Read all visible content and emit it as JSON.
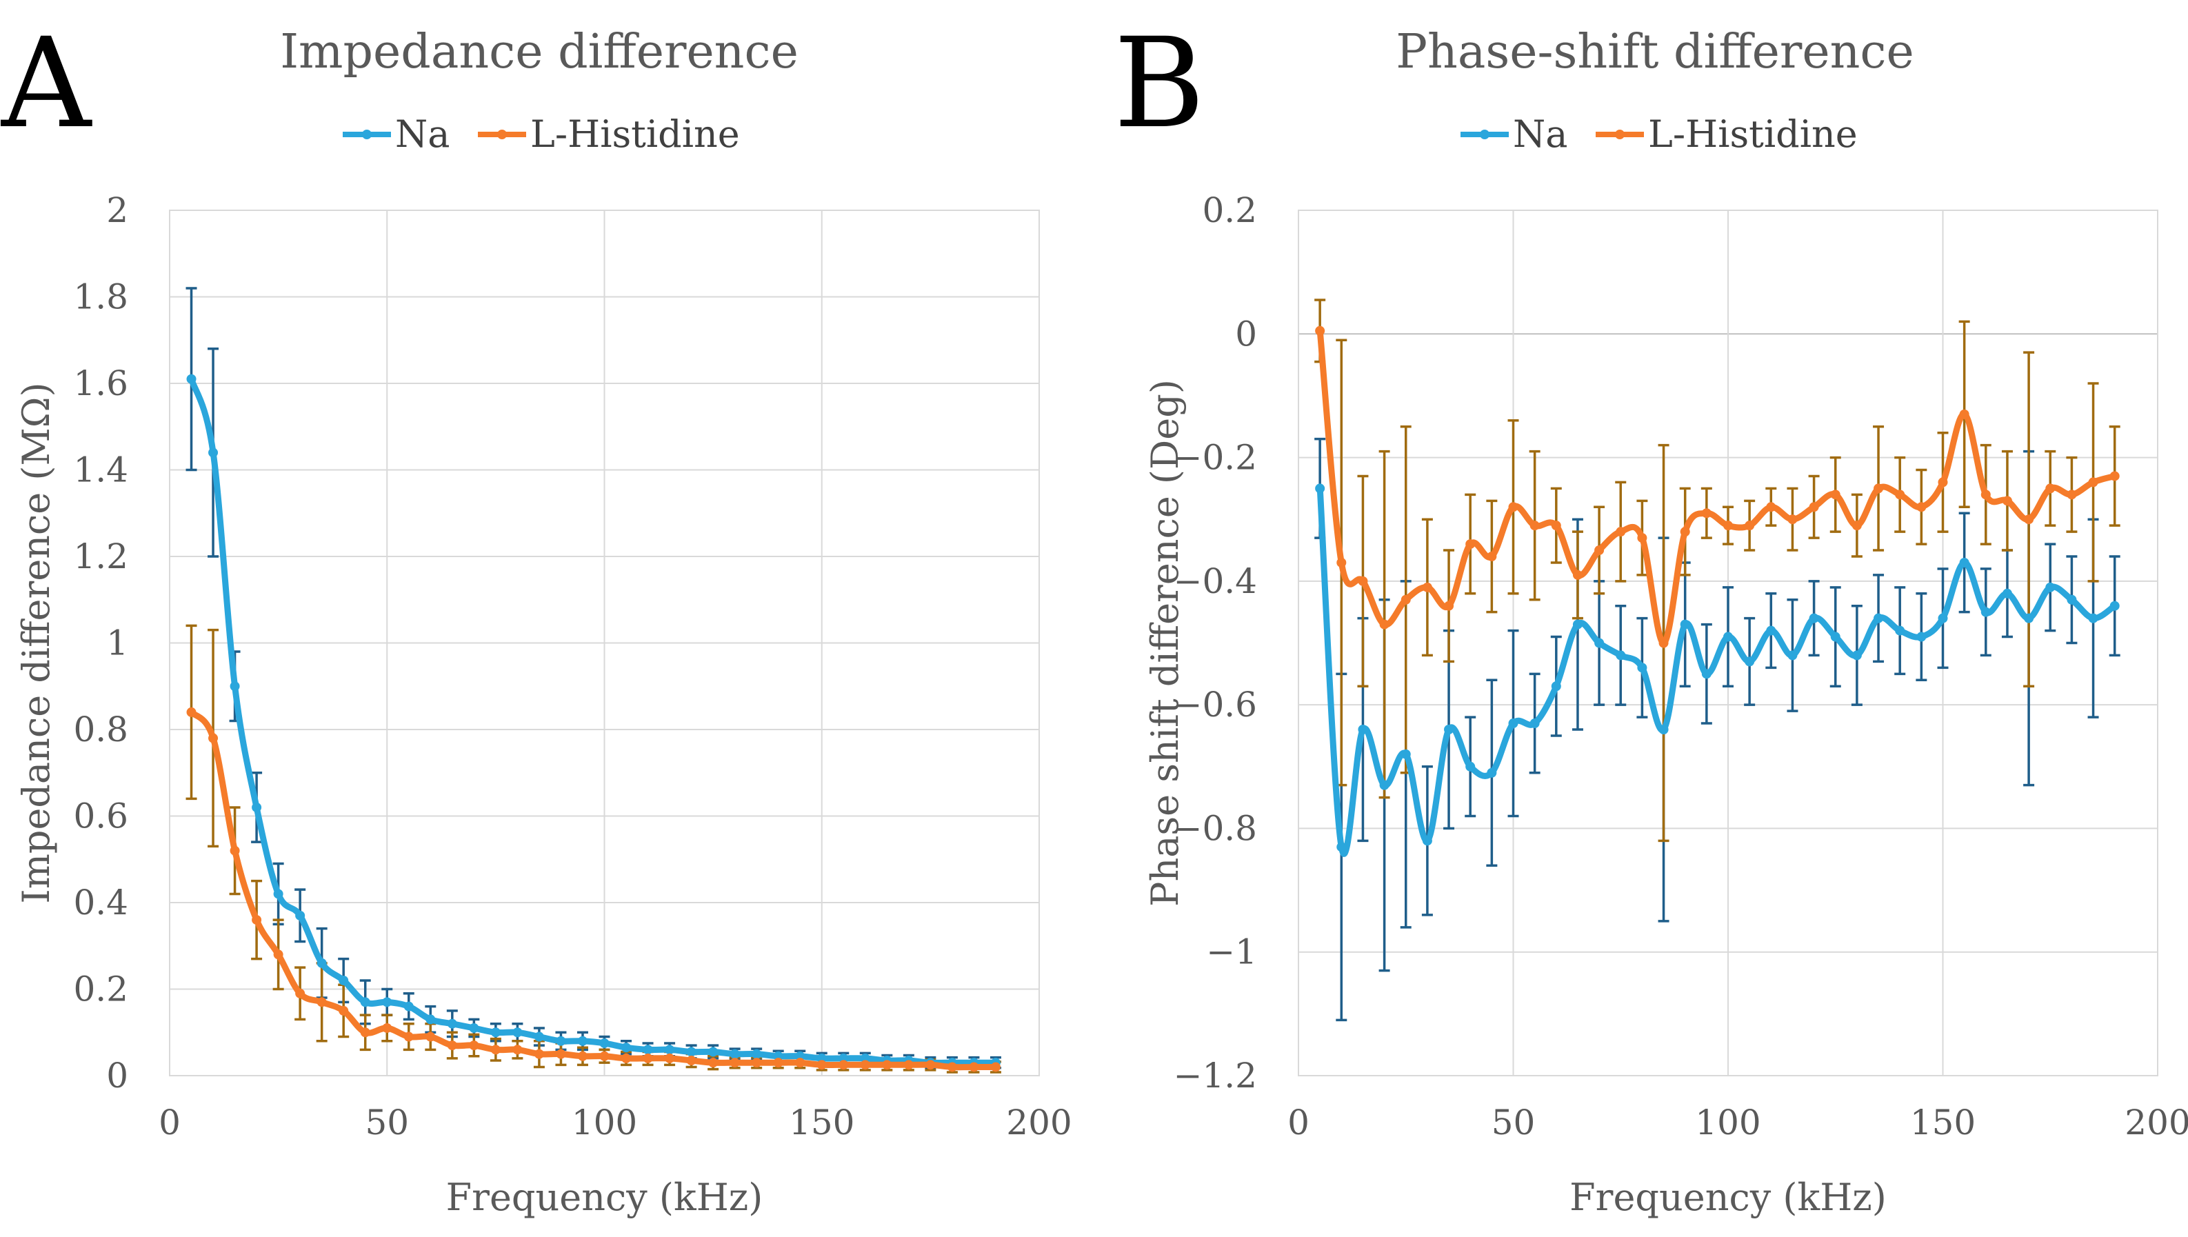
{
  "colors": {
    "na_line": "#2aa6dc",
    "lh_line": "#f57b2a",
    "na_err": "#1f5e8a",
    "lh_err": "#a06b10"
  },
  "chart_data": [
    {
      "panel": "A",
      "type": "line",
      "title": "Impedance difference",
      "xlabel": "Frequency (kHz)",
      "ylabel": "Impedance difference (MΩ)",
      "xlim": [
        0,
        200
      ],
      "ylim": [
        0,
        2
      ],
      "xticks": [
        0,
        50,
        100,
        150,
        200
      ],
      "yticks": [
        0,
        0.2,
        0.4,
        0.6,
        0.8,
        1,
        1.2,
        1.4,
        1.6,
        1.8,
        2
      ],
      "ytick_labels": [
        "0",
        "0.2",
        "0.4",
        "0.6",
        "0.8",
        "1",
        "1.2",
        "1.4",
        "1.6",
        "1.8",
        "2"
      ],
      "legend": [
        "Na",
        "L-Histidine"
      ],
      "x": [
        5,
        10,
        15,
        20,
        25,
        30,
        35,
        40,
        45,
        50,
        55,
        60,
        65,
        70,
        75,
        80,
        85,
        90,
        95,
        100,
        105,
        110,
        115,
        120,
        125,
        130,
        135,
        140,
        145,
        150,
        155,
        160,
        165,
        170,
        175,
        180,
        185,
        190
      ],
      "series": [
        {
          "name": "Na",
          "values": [
            1.61,
            1.44,
            0.9,
            0.62,
            0.42,
            0.37,
            0.26,
            0.22,
            0.17,
            0.17,
            0.16,
            0.13,
            0.12,
            0.11,
            0.1,
            0.1,
            0.09,
            0.08,
            0.08,
            0.075,
            0.065,
            0.06,
            0.06,
            0.055,
            0.055,
            0.05,
            0.05,
            0.045,
            0.045,
            0.04,
            0.04,
            0.04,
            0.035,
            0.035,
            0.03,
            0.03,
            0.03,
            0.03
          ],
          "errors": [
            0.21,
            0.24,
            0.08,
            0.08,
            0.07,
            0.06,
            0.08,
            0.05,
            0.05,
            0.03,
            0.03,
            0.03,
            0.03,
            0.02,
            0.02,
            0.02,
            0.02,
            0.02,
            0.02,
            0.015,
            0.015,
            0.015,
            0.015,
            0.015,
            0.015,
            0.012,
            0.012,
            0.012,
            0.012,
            0.012,
            0.012,
            0.012,
            0.012,
            0.012,
            0.012,
            0.012,
            0.012,
            0.012
          ]
        },
        {
          "name": "L-Histidine",
          "values": [
            0.84,
            0.78,
            0.52,
            0.36,
            0.28,
            0.19,
            0.17,
            0.15,
            0.1,
            0.11,
            0.09,
            0.09,
            0.07,
            0.07,
            0.06,
            0.06,
            0.05,
            0.05,
            0.045,
            0.045,
            0.04,
            0.04,
            0.04,
            0.035,
            0.03,
            0.03,
            0.03,
            0.03,
            0.03,
            0.025,
            0.025,
            0.025,
            0.025,
            0.025,
            0.025,
            0.02,
            0.02,
            0.02
          ],
          "errors": [
            0.2,
            0.25,
            0.1,
            0.09,
            0.08,
            0.06,
            0.09,
            0.06,
            0.04,
            0.03,
            0.03,
            0.03,
            0.03,
            0.025,
            0.025,
            0.02,
            0.03,
            0.025,
            0.02,
            0.015,
            0.015,
            0.015,
            0.015,
            0.015,
            0.015,
            0.012,
            0.012,
            0.012,
            0.012,
            0.012,
            0.012,
            0.012,
            0.012,
            0.012,
            0.012,
            0.012,
            0.012,
            0.012
          ]
        }
      ]
    },
    {
      "panel": "B",
      "type": "line",
      "title": "Phase-shift difference",
      "xlabel": "Frequency (kHz)",
      "ylabel": "Phase shift difference (Deg)",
      "xlim": [
        0,
        200
      ],
      "ylim": [
        -1.2,
        0.2
      ],
      "xticks": [
        0,
        50,
        100,
        150,
        200
      ],
      "yticks": [
        -1.2,
        -1,
        -0.8,
        -0.6,
        -0.4,
        -0.2,
        0,
        0.2
      ],
      "ytick_labels": [
        "−1.2",
        "−1",
        "−0.8",
        "−0.6",
        "−0.4",
        "−0.2",
        "0",
        "0.2"
      ],
      "legend": [
        "Na",
        "L-Histidine"
      ],
      "x": [
        5,
        10,
        15,
        20,
        25,
        30,
        35,
        40,
        45,
        50,
        55,
        60,
        65,
        70,
        75,
        80,
        85,
        90,
        95,
        100,
        105,
        110,
        115,
        120,
        125,
        130,
        135,
        140,
        145,
        150,
        155,
        160,
        165,
        170,
        175,
        180,
        185,
        190
      ],
      "series": [
        {
          "name": "Na",
          "values": [
            -0.25,
            -0.83,
            -0.64,
            -0.73,
            -0.68,
            -0.82,
            -0.64,
            -0.7,
            -0.71,
            -0.63,
            -0.63,
            -0.57,
            -0.47,
            -0.5,
            -0.52,
            -0.54,
            -0.64,
            -0.47,
            -0.55,
            -0.49,
            -0.53,
            -0.48,
            -0.52,
            -0.46,
            -0.49,
            -0.52,
            -0.46,
            -0.48,
            -0.49,
            -0.46,
            -0.37,
            -0.45,
            -0.42,
            -0.46,
            -0.41,
            -0.43,
            -0.46,
            -0.44
          ],
          "errors": [
            0.08,
            0.28,
            0.18,
            0.3,
            0.28,
            0.12,
            0.16,
            0.08,
            0.15,
            0.15,
            0.08,
            0.08,
            0.17,
            0.1,
            0.08,
            0.08,
            0.31,
            0.1,
            0.08,
            0.08,
            0.07,
            0.06,
            0.09,
            0.06,
            0.08,
            0.08,
            0.07,
            0.07,
            0.07,
            0.08,
            0.08,
            0.07,
            0.07,
            0.27,
            0.07,
            0.07,
            0.16,
            0.08
          ]
        },
        {
          "name": "L-Histidine",
          "values": [
            0.005,
            -0.37,
            -0.4,
            -0.47,
            -0.43,
            -0.41,
            -0.44,
            -0.34,
            -0.36,
            -0.28,
            -0.31,
            -0.31,
            -0.39,
            -0.35,
            -0.32,
            -0.33,
            -0.5,
            -0.32,
            -0.29,
            -0.31,
            -0.31,
            -0.28,
            -0.3,
            -0.28,
            -0.26,
            -0.31,
            -0.25,
            -0.26,
            -0.28,
            -0.24,
            -0.13,
            -0.26,
            -0.27,
            -0.3,
            -0.25,
            -0.26,
            -0.24,
            -0.23
          ],
          "errors": [
            0.05,
            0.36,
            0.17,
            0.28,
            0.28,
            0.11,
            0.09,
            0.08,
            0.09,
            0.14,
            0.12,
            0.06,
            0.07,
            0.07,
            0.08,
            0.06,
            0.32,
            0.07,
            0.04,
            0.03,
            0.04,
            0.03,
            0.05,
            0.05,
            0.06,
            0.05,
            0.1,
            0.06,
            0.06,
            0.08,
            0.15,
            0.08,
            0.08,
            0.27,
            0.06,
            0.06,
            0.16,
            0.08
          ]
        }
      ]
    }
  ]
}
